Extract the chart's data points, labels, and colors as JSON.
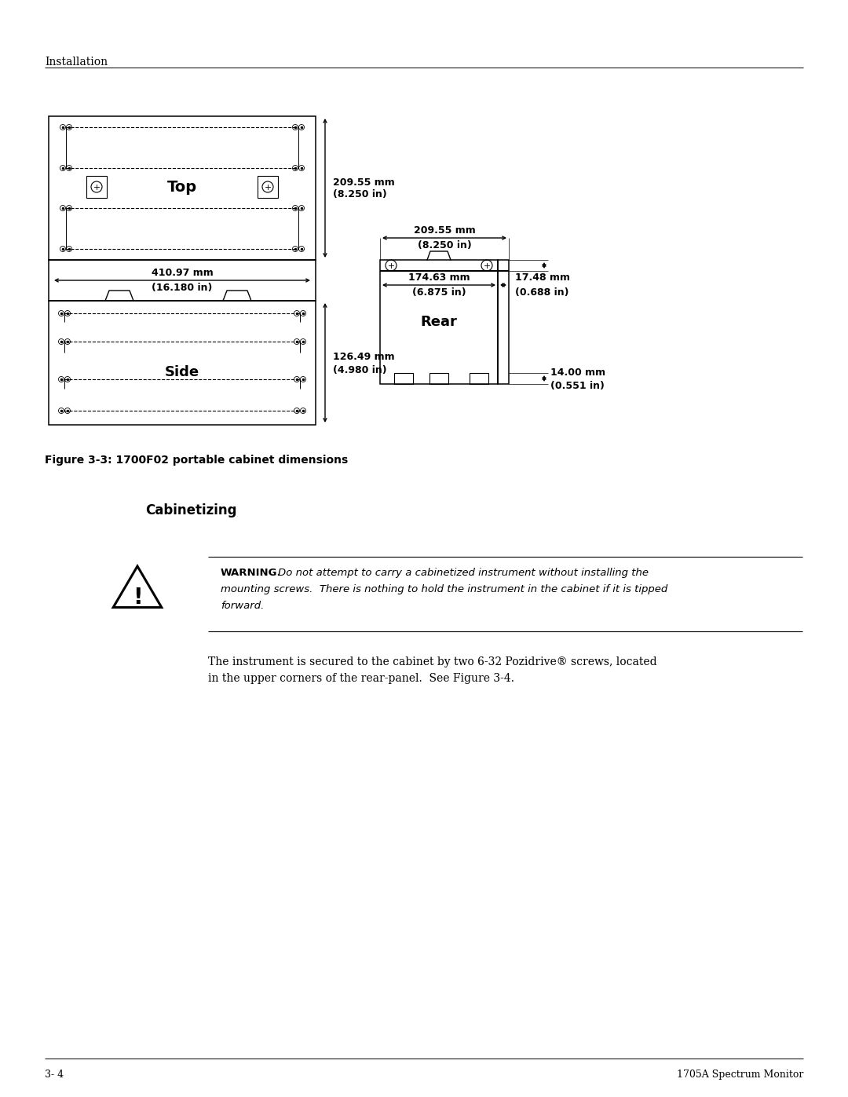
{
  "bg_color": "#ffffff",
  "page_width": 10.8,
  "page_height": 13.97,
  "header_text": "Installation",
  "footer_left": "3- 4",
  "footer_right": "1705A Spectrum Monitor",
  "figure_caption": "Figure 3-3: 1700F02 portable cabinet dimensions",
  "section_title": "Cabinetizing",
  "warning_line1": "Do not attempt to carry a cabinetized instrument without installing the",
  "warning_line2": "mounting screws.  There is nothing to hold the instrument in the cabinet if it is tipped",
  "warning_line3": "forward.",
  "body_line1": "The instrument is secured to the cabinet by two 6‑32 Pozidrive® screws, located",
  "body_line2": "in the upper corners of the rear-panel.  See Figure 3-4."
}
